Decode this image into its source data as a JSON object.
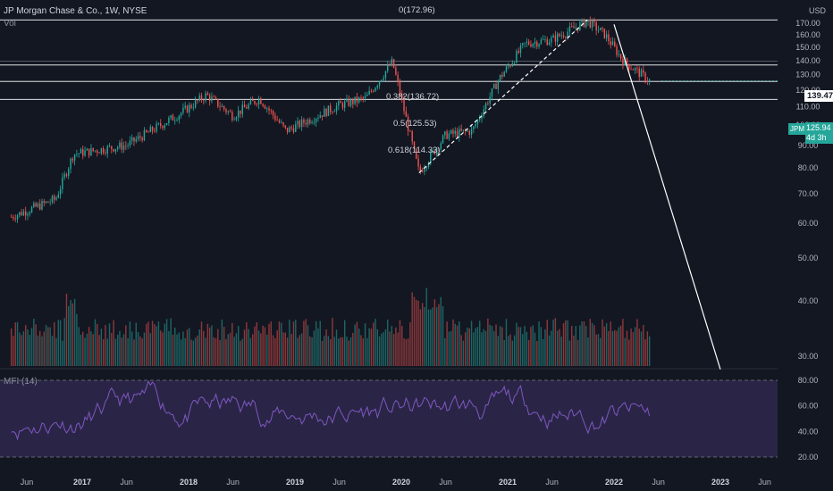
{
  "header": {
    "title": "JP Morgan Chase & Co., 1W, NYSE",
    "volume_label": "Vol",
    "mfi_label": "MFI (14)",
    "currency": "USD"
  },
  "fib_levels": [
    {
      "label": "0(172.96)",
      "price": 172.96
    },
    {
      "label": "0.382(136.72)",
      "price": 136.72
    },
    {
      "label": "0.5(125.53)",
      "price": 125.53
    },
    {
      "label": "0.618(114.33)",
      "price": 114.33
    }
  ],
  "price_badges": {
    "horizontal_line": {
      "value": "139.47",
      "price": 139.47,
      "bg": "#ffffff",
      "fg": "#131722"
    },
    "last_price": {
      "symbol": "JPM",
      "value": "125.94",
      "countdown": "4d 3h",
      "price": 125.94,
      "bg": "#26a69a",
      "fg": "#ffffff"
    }
  },
  "colors": {
    "background": "#131722",
    "up": "#26a69a",
    "down": "#ef5350",
    "mfi_line": "#7e57c2",
    "mfi_band": "#2a2546",
    "lines": "#ffffff"
  },
  "chart_data": [
    {
      "type": "candlestick",
      "title": "JP Morgan Chase & Co., 1W, NYSE",
      "y_axis": {
        "scale": "log",
        "unit": "USD",
        "ticks": [
          170,
          160,
          150,
          140,
          130,
          120,
          110,
          100,
          90,
          80,
          70,
          60,
          50,
          40,
          30
        ]
      },
      "x_axis": {
        "ticks": [
          "Jun",
          "2017",
          "Jun",
          "2018",
          "Jun",
          "2019",
          "Jun",
          "2020",
          "Jun",
          "2021",
          "Jun",
          "2022",
          "Jun",
          "2023",
          "Jun"
        ]
      },
      "approx_weekly_closes": {
        "start": "2016-05",
        "end": "2022-05",
        "anchors": [
          {
            "date": "2016-05",
            "close": 62
          },
          {
            "date": "2016-10",
            "close": 68
          },
          {
            "date": "2016-12",
            "close": 86
          },
          {
            "date": "2017-06",
            "close": 90
          },
          {
            "date": "2017-12",
            "close": 106
          },
          {
            "date": "2018-03",
            "close": 117
          },
          {
            "date": "2018-06",
            "close": 105
          },
          {
            "date": "2018-09",
            "close": 115
          },
          {
            "date": "2018-12",
            "close": 97
          },
          {
            "date": "2019-06",
            "close": 111
          },
          {
            "date": "2019-09",
            "close": 115
          },
          {
            "date": "2019-12",
            "close": 139
          },
          {
            "date": "2020-03",
            "close": 78
          },
          {
            "date": "2020-06",
            "close": 95
          },
          {
            "date": "2020-09",
            "close": 97
          },
          {
            "date": "2020-12",
            "close": 127
          },
          {
            "date": "2021-03",
            "close": 153
          },
          {
            "date": "2021-06",
            "close": 156
          },
          {
            "date": "2021-10",
            "close": 172
          },
          {
            "date": "2021-12",
            "close": 160
          },
          {
            "date": "2022-02",
            "close": 140
          },
          {
            "date": "2022-05",
            "close": 125.94
          }
        ]
      },
      "trendlines": [
        {
          "from": {
            "date": "2020-03",
            "price": 78
          },
          "to": {
            "date": "2021-10",
            "price": 172.96
          },
          "style": "dashed"
        },
        {
          "from": {
            "date": "2022-01",
            "price": 169
          },
          "to": {
            "date": "2023-01",
            "price": 28
          },
          "style": "solid"
        }
      ]
    },
    {
      "type": "bar",
      "title": "Vol",
      "description": "weekly volume bars, colored by candle direction"
    },
    {
      "type": "line",
      "title": "MFI (14)",
      "y_axis": {
        "ticks": [
          80.0,
          60.0,
          40.0,
          20.0
        ],
        "band": [
          20,
          80
        ]
      }
    }
  ],
  "price_axis_labels": [
    "170.00",
    "160.00",
    "150.00",
    "140.00",
    "130.00",
    "120.00",
    "110.00",
    "100.00",
    "90.00",
    "80.00",
    "70.00",
    "60.00",
    "50.00",
    "40.00",
    "30.00"
  ],
  "mfi_axis_labels": [
    "80.00",
    "60.00",
    "40.00",
    "20.00"
  ]
}
